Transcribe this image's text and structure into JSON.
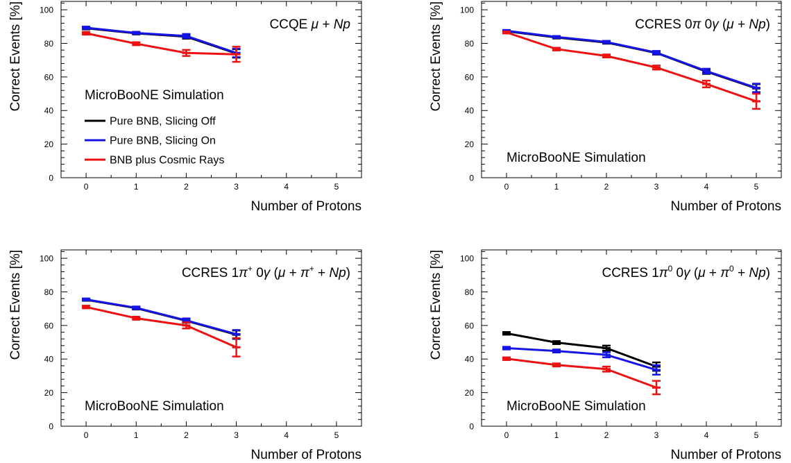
{
  "chart_data": [
    {
      "type": "line",
      "panel": "top-left",
      "title": "CCQE μ + Np",
      "xlabel": "Number of Protons",
      "ylabel": "Correct Events [%]",
      "xlim": [
        -0.5,
        5.5
      ],
      "ylim": [
        0,
        105
      ],
      "x_ticks": [
        0,
        1,
        2,
        3,
        4,
        5
      ],
      "y_ticks": [
        0,
        20,
        40,
        60,
        80,
        100
      ],
      "annotation": "MicroBooNE Simulation",
      "legend": {
        "placement": "middle-left",
        "entries": [
          {
            "label": "Pure BNB, Slicing Off",
            "color": "#000000"
          },
          {
            "label": "Pure BNB, Slicing On",
            "color": "#1515e6"
          },
          {
            "label": "BNB plus Cosmic Rays",
            "color": "#ee1111"
          }
        ]
      },
      "series": [
        {
          "name": "Pure BNB, Slicing Off",
          "color": "#000000",
          "x": [
            0,
            1,
            2,
            3
          ],
          "values": [
            89,
            86,
            84,
            74
          ],
          "errors": [
            0.7,
            0.7,
            1.2,
            2.5
          ]
        },
        {
          "name": "Pure BNB, Slicing On",
          "color": "#1515e6",
          "x": [
            0,
            1,
            2,
            3
          ],
          "values": [
            89.3,
            86.2,
            84.4,
            74.3
          ],
          "errors": [
            0.7,
            0.7,
            1.2,
            2.5
          ]
        },
        {
          "name": "BNB plus Cosmic Rays",
          "color": "#ee1111",
          "x": [
            0,
            1,
            2,
            3
          ],
          "values": [
            86,
            79.8,
            74.3,
            73.5
          ],
          "errors": [
            0.8,
            0.9,
            1.8,
            4.5
          ]
        }
      ]
    },
    {
      "type": "line",
      "panel": "top-right",
      "title": "CCRES 0π 0γ (μ + Np)",
      "xlabel": "Number of Protons",
      "ylabel": "Correct Events [%]",
      "xlim": [
        -0.5,
        5.5
      ],
      "ylim": [
        0,
        105
      ],
      "x_ticks": [
        0,
        1,
        2,
        3,
        4,
        5
      ],
      "y_ticks": [
        0,
        20,
        40,
        60,
        80,
        100
      ],
      "annotation": "MicroBooNE Simulation",
      "series": [
        {
          "name": "Pure BNB, Slicing Off",
          "color": "#000000",
          "x": [
            0,
            1,
            2,
            3,
            4,
            5
          ],
          "values": [
            87.2,
            83.5,
            80.5,
            74.3,
            63.2,
            53.2
          ],
          "errors": [
            0.5,
            0.6,
            0.7,
            1.0,
            1.4,
            2.5
          ]
        },
        {
          "name": "Pure BNB, Slicing On",
          "color": "#1515e6",
          "x": [
            0,
            1,
            2,
            3,
            4,
            5
          ],
          "values": [
            87.5,
            83.8,
            80.8,
            74.5,
            63.5,
            53.5
          ],
          "errors": [
            0.5,
            0.6,
            0.7,
            1.0,
            1.4,
            2.5
          ]
        },
        {
          "name": "BNB plus Cosmic Rays",
          "color": "#ee1111",
          "x": [
            0,
            1,
            2,
            3,
            4,
            5
          ],
          "values": [
            86.5,
            76.6,
            72.5,
            65.6,
            55.8,
            45.5
          ],
          "errors": [
            0.6,
            0.8,
            0.9,
            1.2,
            2.0,
            4.5
          ]
        }
      ]
    },
    {
      "type": "line",
      "panel": "bottom-left",
      "title": "CCRES 1π⁺ 0γ (μ + π⁺ + Np)",
      "xlabel": "Number of Protons",
      "ylabel": "Correct Events [%]",
      "xlim": [
        -0.5,
        5.5
      ],
      "ylim": [
        0,
        105
      ],
      "x_ticks": [
        0,
        1,
        2,
        3,
        4,
        5
      ],
      "y_ticks": [
        0,
        20,
        40,
        60,
        80,
        100
      ],
      "annotation": "MicroBooNE Simulation",
      "series": [
        {
          "name": "Pure BNB, Slicing Off",
          "color": "#000000",
          "x": [
            0,
            1,
            2,
            3
          ],
          "values": [
            75.3,
            70.3,
            62.8,
            54.5
          ],
          "errors": [
            0.6,
            0.8,
            1.2,
            2.5
          ]
        },
        {
          "name": "Pure BNB, Slicing On",
          "color": "#1515e6",
          "x": [
            0,
            1,
            2,
            3
          ],
          "values": [
            75.5,
            70.5,
            63.0,
            54.8
          ],
          "errors": [
            0.6,
            0.8,
            1.2,
            2.5
          ]
        },
        {
          "name": "BNB plus Cosmic Rays",
          "color": "#ee1111",
          "x": [
            0,
            1,
            2,
            3
          ],
          "values": [
            71.0,
            64.3,
            60.0,
            47.0
          ],
          "errors": [
            0.8,
            0.9,
            1.8,
            5.5
          ]
        }
      ]
    },
    {
      "type": "line",
      "panel": "bottom-right",
      "title": "CCRES 1π⁰ 0γ (μ + π⁰ + Np)",
      "xlabel": "Number of Protons",
      "ylabel": "Correct Events [%]",
      "xlim": [
        -0.5,
        5.5
      ],
      "ylim": [
        0,
        105
      ],
      "x_ticks": [
        0,
        1,
        2,
        3,
        4,
        5
      ],
      "y_ticks": [
        0,
        20,
        40,
        60,
        80,
        100
      ],
      "annotation": "MicroBooNE Simulation",
      "series": [
        {
          "name": "Pure BNB, Slicing Off",
          "color": "#000000",
          "x": [
            0,
            1,
            2,
            3
          ],
          "values": [
            55.3,
            49.8,
            46.5,
            35.5
          ],
          "errors": [
            0.8,
            0.9,
            1.5,
            2.5
          ]
        },
        {
          "name": "Pure BNB, Slicing On",
          "color": "#1515e6",
          "x": [
            0,
            1,
            2,
            3
          ],
          "values": [
            46.5,
            44.8,
            42.5,
            33.5
          ],
          "errors": [
            0.8,
            0.9,
            1.5,
            2.8
          ]
        },
        {
          "name": "BNB plus Cosmic Rays",
          "color": "#ee1111",
          "x": [
            0,
            1,
            2,
            3
          ],
          "values": [
            40.2,
            36.5,
            34.0,
            23.0
          ],
          "errors": [
            0.8,
            0.9,
            1.5,
            4.0
          ]
        }
      ]
    }
  ]
}
